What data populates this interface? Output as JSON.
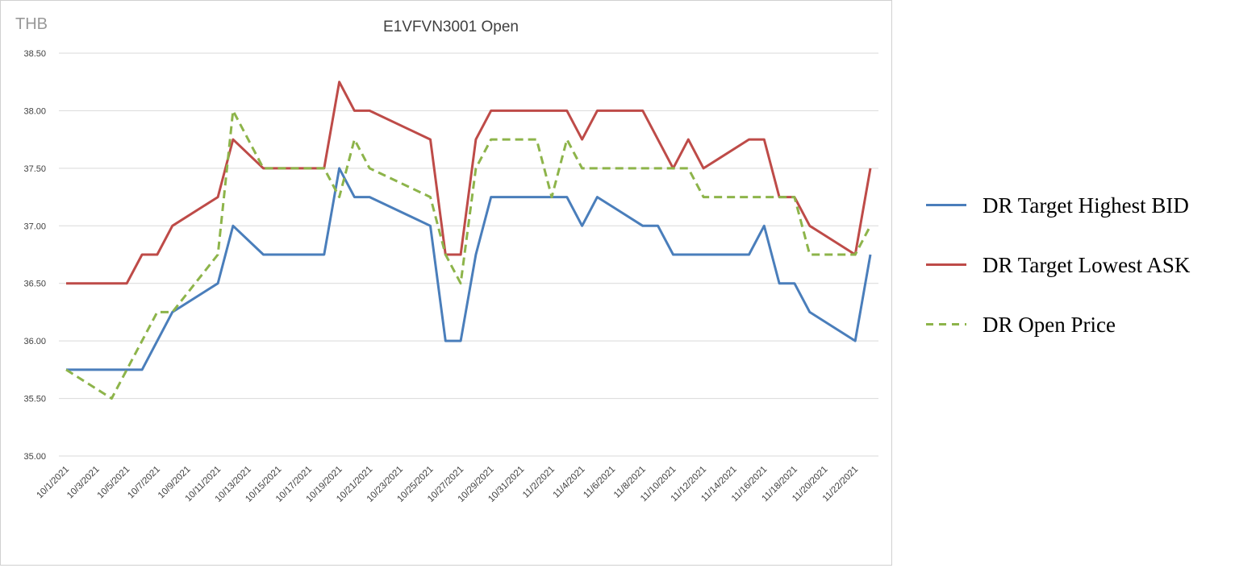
{
  "chart_data": {
    "type": "line",
    "title": "E1VFVN3001 Open",
    "unit_label": "THB",
    "ylim": [
      35.0,
      38.5
    ],
    "y_ticks": [
      "35.00",
      "35.50",
      "36.00",
      "36.50",
      "37.00",
      "37.50",
      "38.00",
      "38.50"
    ],
    "y_tick_values": [
      35.0,
      35.5,
      36.0,
      36.5,
      37.0,
      37.5,
      38.0,
      38.5
    ],
    "x_range": [
      "10/1/2021",
      "11/23/2021"
    ],
    "x_tick_labels": [
      "10/1/2021",
      "10/3/2021",
      "10/5/2021",
      "10/7/2021",
      "10/9/2021",
      "10/11/2021",
      "10/13/2021",
      "10/15/2021",
      "10/17/2021",
      "10/19/2021",
      "10/21/2021",
      "10/23/2021",
      "10/25/2021",
      "10/27/2021",
      "10/29/2021",
      "10/31/2021",
      "11/2/2021",
      "11/4/2021",
      "11/6/2021",
      "11/8/2021",
      "11/10/2021",
      "11/12/2021",
      "11/14/2021",
      "11/16/2021",
      "11/18/2021",
      "11/20/2021",
      "11/22/2021"
    ],
    "grid": true,
    "legend_position": "right",
    "series": [
      {
        "name": "DR Target Highest BID",
        "color": "#4a7ebb",
        "style": "solid",
        "points": [
          [
            "10/1/2021",
            35.75
          ],
          [
            "10/5/2021",
            35.75
          ],
          [
            "10/6/2021",
            35.75
          ],
          [
            "10/8/2021",
            36.25
          ],
          [
            "10/11/2021",
            36.5
          ],
          [
            "10/12/2021",
            37.0
          ],
          [
            "10/14/2021",
            36.75
          ],
          [
            "10/18/2021",
            36.75
          ],
          [
            "10/19/2021",
            37.5
          ],
          [
            "10/20/2021",
            37.25
          ],
          [
            "10/21/2021",
            37.25
          ],
          [
            "10/25/2021",
            37.0
          ],
          [
            "10/26/2021",
            36.0
          ],
          [
            "10/27/2021",
            36.0
          ],
          [
            "10/28/2021",
            36.75
          ],
          [
            "10/29/2021",
            37.25
          ],
          [
            "11/3/2021",
            37.25
          ],
          [
            "11/4/2021",
            37.0
          ],
          [
            "11/5/2021",
            37.25
          ],
          [
            "11/8/2021",
            37.0
          ],
          [
            "11/9/2021",
            37.0
          ],
          [
            "11/10/2021",
            36.75
          ],
          [
            "11/15/2021",
            36.75
          ],
          [
            "11/16/2021",
            37.0
          ],
          [
            "11/17/2021",
            36.5
          ],
          [
            "11/18/2021",
            36.5
          ],
          [
            "11/19/2021",
            36.25
          ],
          [
            "11/22/2021",
            36.0
          ],
          [
            "11/23/2021",
            36.75
          ]
        ]
      },
      {
        "name": "DR Target Lowest ASK",
        "color": "#be4b48",
        "style": "solid",
        "points": [
          [
            "10/1/2021",
            36.5
          ],
          [
            "10/5/2021",
            36.5
          ],
          [
            "10/6/2021",
            36.75
          ],
          [
            "10/7/2021",
            36.75
          ],
          [
            "10/8/2021",
            37.0
          ],
          [
            "10/11/2021",
            37.25
          ],
          [
            "10/12/2021",
            37.75
          ],
          [
            "10/14/2021",
            37.5
          ],
          [
            "10/18/2021",
            37.5
          ],
          [
            "10/19/2021",
            38.25
          ],
          [
            "10/20/2021",
            38.0
          ],
          [
            "10/21/2021",
            38.0
          ],
          [
            "10/25/2021",
            37.75
          ],
          [
            "10/26/2021",
            36.75
          ],
          [
            "10/27/2021",
            36.75
          ],
          [
            "10/28/2021",
            37.75
          ],
          [
            "10/29/2021",
            38.0
          ],
          [
            "11/3/2021",
            38.0
          ],
          [
            "11/4/2021",
            37.75
          ],
          [
            "11/5/2021",
            38.0
          ],
          [
            "11/8/2021",
            38.0
          ],
          [
            "11/10/2021",
            37.5
          ],
          [
            "11/11/2021",
            37.75
          ],
          [
            "11/12/2021",
            37.5
          ],
          [
            "11/15/2021",
            37.75
          ],
          [
            "11/16/2021",
            37.75
          ],
          [
            "11/17/2021",
            37.25
          ],
          [
            "11/18/2021",
            37.25
          ],
          [
            "11/19/2021",
            37.0
          ],
          [
            "11/22/2021",
            36.75
          ],
          [
            "11/23/2021",
            37.5
          ]
        ]
      },
      {
        "name": "DR Open Price",
        "color": "#8db44a",
        "style": "dashed",
        "points": [
          [
            "10/1/2021",
            35.75
          ],
          [
            "10/4/2021",
            35.5
          ],
          [
            "10/5/2021",
            35.75
          ],
          [
            "10/7/2021",
            36.25
          ],
          [
            "10/8/2021",
            36.25
          ],
          [
            "10/11/2021",
            36.75
          ],
          [
            "10/12/2021",
            38.0
          ],
          [
            "10/13/2021",
            37.75
          ],
          [
            "10/14/2021",
            37.5
          ],
          [
            "10/18/2021",
            37.5
          ],
          [
            "10/19/2021",
            37.25
          ],
          [
            "10/20/2021",
            37.75
          ],
          [
            "10/21/2021",
            37.5
          ],
          [
            "10/25/2021",
            37.25
          ],
          [
            "10/26/2021",
            36.75
          ],
          [
            "10/27/2021",
            36.5
          ],
          [
            "10/28/2021",
            37.5
          ],
          [
            "10/29/2021",
            37.75
          ],
          [
            "11/1/2021",
            37.75
          ],
          [
            "11/2/2021",
            37.25
          ],
          [
            "11/3/2021",
            37.75
          ],
          [
            "11/4/2021",
            37.5
          ],
          [
            "11/11/2021",
            37.5
          ],
          [
            "11/12/2021",
            37.25
          ],
          [
            "11/17/2021",
            37.25
          ],
          [
            "11/18/2021",
            37.25
          ],
          [
            "11/19/2021",
            36.75
          ],
          [
            "11/22/2021",
            36.75
          ],
          [
            "11/23/2021",
            37.0
          ]
        ]
      }
    ]
  }
}
